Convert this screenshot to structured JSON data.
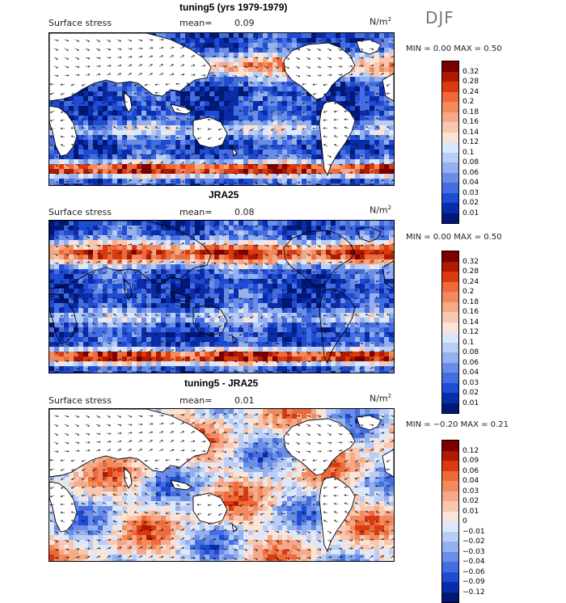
{
  "season": "DJF",
  "panels": [
    {
      "title": "tuning5 (yrs 1979-1979)",
      "variable": "Surface stress",
      "mean_label": "mean=",
      "mean_value": "0.09",
      "units": "N/m",
      "units_exp": "2",
      "minmax": "MIN =    0.00 MAX =    0.50",
      "colorbar": [
        "0.32",
        "0.28",
        "0.24",
        "0.2",
        "0.18",
        "0.16",
        "0.14",
        "0.12",
        "0.1",
        "0.08",
        "0.06",
        "0.04",
        "0.03",
        "0.02",
        "0.01"
      ]
    },
    {
      "title": "JRA25",
      "variable": "Surface stress",
      "mean_label": "mean=",
      "mean_value": "0.08",
      "units": "N/m",
      "units_exp": "2",
      "minmax": "MIN =    0.00 MAX =    0.50",
      "colorbar": [
        "0.32",
        "0.28",
        "0.24",
        "0.2",
        "0.18",
        "0.16",
        "0.14",
        "0.12",
        "0.1",
        "0.08",
        "0.06",
        "0.04",
        "0.03",
        "0.02",
        "0.01"
      ]
    },
    {
      "title": "tuning5 - JRA25",
      "variable": "Surface stress",
      "mean_label": "mean=",
      "mean_value": "0.01",
      "units": "N/m",
      "units_exp": "2",
      "minmax": "MIN =  −0.20 MAX =    0.21",
      "colorbar": [
        "0.12",
        "0.09",
        "0.06",
        "0.04",
        "0.03",
        "0.02",
        "0.01",
        "0",
        "−0.01",
        "−0.02",
        "−0.03",
        "−0.04",
        "−0.06",
        "−0.09",
        "−0.12"
      ]
    }
  ],
  "colors": {
    "scale": [
      "#7a0000",
      "#b01a00",
      "#d93a10",
      "#ef6a3a",
      "#f38a5e",
      "#f6a988",
      "#f8c7b0",
      "#fbe3d6",
      "#dbe7fa",
      "#b9cdf6",
      "#93b0ef",
      "#6a8ee8",
      "#436de0",
      "#1f4cd4",
      "#0a2ca8",
      "#001878"
    ]
  }
}
